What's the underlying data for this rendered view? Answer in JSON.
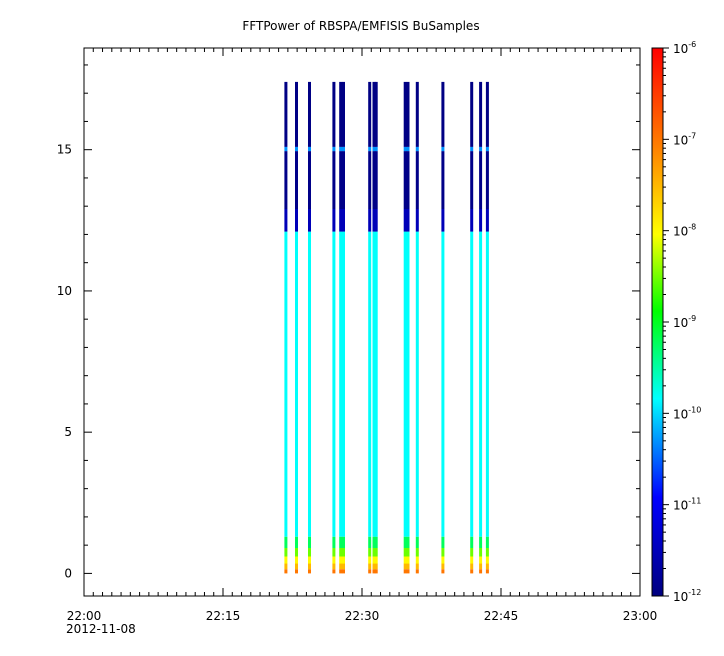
{
  "chart_data": {
    "type": "heatmap",
    "title": "FFTPower of RBSPA/EMFISIS  BuSamples",
    "xlabel": "",
    "ylabel": "",
    "x_range": [
      "22:00",
      "23:00"
    ],
    "x_date_label": "2012-11-08",
    "x_ticks": [
      {
        "time": "22:00",
        "label": "22:00"
      },
      {
        "time": "22:15",
        "label": "22:15"
      },
      {
        "time": "22:30",
        "label": "22:30"
      },
      {
        "time": "22:45",
        "label": "22:45"
      },
      {
        "time": "23:00",
        "label": "23:00"
      }
    ],
    "ylim": [
      -0.8,
      18.6
    ],
    "y_ticks": [
      0,
      5,
      10,
      15
    ],
    "colorbar": {
      "scale": "log",
      "range": [
        1e-12,
        1e-06
      ],
      "ticks": [
        {
          "base": "10",
          "exp": "-6",
          "value": 1e-06
        },
        {
          "base": "10",
          "exp": "-7",
          "value": 1e-07
        },
        {
          "base": "10",
          "exp": "-8",
          "value": 1e-08
        },
        {
          "base": "10",
          "exp": "-9",
          "value": 1e-09
        },
        {
          "base": "10",
          "exp": "-10",
          "value": 1e-10
        },
        {
          "base": "10",
          "exp": "-11",
          "value": 1e-11
        },
        {
          "base": "10",
          "exp": "-12",
          "value": 1e-12
        }
      ],
      "colors": [
        "#00007f",
        "#0000ff",
        "#00ffff",
        "#00ff00",
        "#ffff00",
        "#ff7f00",
        "#ff0000"
      ]
    },
    "bursts": [
      {
        "time": "22:21:47"
      },
      {
        "time": "22:22:56"
      },
      {
        "time": "22:24:20"
      },
      {
        "time": "22:26:58"
      },
      {
        "time": "22:27:42"
      },
      {
        "time": "22:28:00"
      },
      {
        "time": "22:30:50"
      },
      {
        "time": "22:31:18"
      },
      {
        "time": "22:31:32"
      },
      {
        "time": "22:34:40"
      },
      {
        "time": "22:34:58"
      },
      {
        "time": "22:35:58"
      },
      {
        "time": "22:38:44"
      },
      {
        "time": "22:41:50"
      },
      {
        "time": "22:42:48"
      },
      {
        "time": "22:43:32"
      }
    ],
    "freq_max": 17.4,
    "spectrum_profile": [
      {
        "f_low": 0.0,
        "f_high": 0.15,
        "power": 1e-07
      },
      {
        "f_low": 0.15,
        "f_high": 0.35,
        "power": 3e-08
      },
      {
        "f_low": 0.35,
        "f_high": 0.6,
        "power": 1e-08
      },
      {
        "f_low": 0.6,
        "f_high": 0.9,
        "power": 3e-09
      },
      {
        "f_low": 0.9,
        "f_high": 1.3,
        "power": 6e-10
      },
      {
        "f_low": 1.3,
        "f_high": 12.1,
        "power": 1.5e-10
      },
      {
        "f_low": 12.1,
        "f_high": 12.9,
        "power": 3e-12
      },
      {
        "f_low": 12.9,
        "f_high": 14.95,
        "power": 1.2e-12
      },
      {
        "f_low": 14.95,
        "f_high": 15.1,
        "power": 5e-11
      },
      {
        "f_low": 15.1,
        "f_high": 17.4,
        "power": 1.1e-12
      }
    ]
  }
}
